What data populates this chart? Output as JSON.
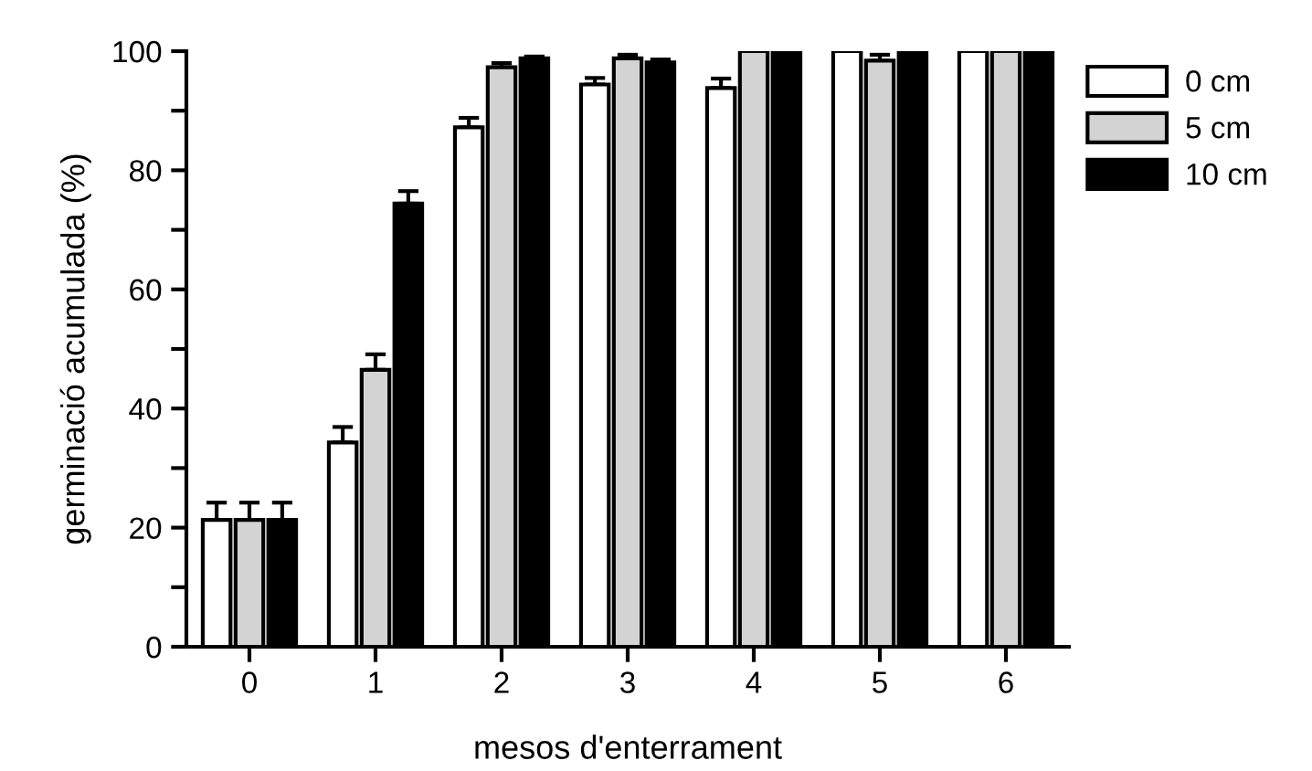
{
  "chart_data": {
    "type": "bar",
    "xlabel": "mesos d'enterrament",
    "ylabel": "germinació acumulada (%)",
    "categories": [
      "0",
      "1",
      "2",
      "3",
      "4",
      "5",
      "6"
    ],
    "ylim": [
      0,
      100
    ],
    "yticks": [
      0,
      {
        "value": 10,
        "label": null
      },
      20,
      {
        "value": 30,
        "label": null
      },
      40,
      {
        "value": 50,
        "label": null
      },
      60,
      {
        "value": 70,
        "label": null
      },
      80,
      {
        "value": 90,
        "label": null
      },
      100
    ],
    "grid": false,
    "legend": "top right",
    "series": [
      {
        "name": "0 cm",
        "color": "#ffffff",
        "values": [
          21.3,
          34.3,
          87.2,
          94.4,
          93.8,
          100,
          100
        ],
        "errors": [
          [
            21.3,
            24.2
          ],
          [
            34.3,
            36.9
          ],
          [
            87.2,
            88.8
          ],
          [
            94.4,
            95.5
          ],
          [
            93.8,
            95.4
          ],
          null,
          null
        ]
      },
      {
        "name": "5 cm",
        "color": "#d3d3d3",
        "values": [
          21.3,
          46.5,
          97.3,
          98.8,
          100,
          98.4,
          100
        ],
        "errors": [
          [
            21.3,
            24.2
          ],
          [
            46.5,
            49.1
          ],
          [
            97.3,
            98.0
          ],
          [
            98.8,
            99.4
          ],
          null,
          [
            98.4,
            99.4
          ],
          null
        ]
      },
      {
        "name": "10 cm",
        "color": "#000000",
        "values": [
          21.3,
          74.4,
          98.8,
          98.1,
          100,
          100,
          100
        ],
        "errors": [
          [
            21.3,
            24.2
          ],
          [
            74.4,
            76.5
          ],
          [
            98.8,
            99.1
          ],
          [
            98.1,
            98.6
          ],
          null,
          null,
          null
        ]
      }
    ]
  }
}
